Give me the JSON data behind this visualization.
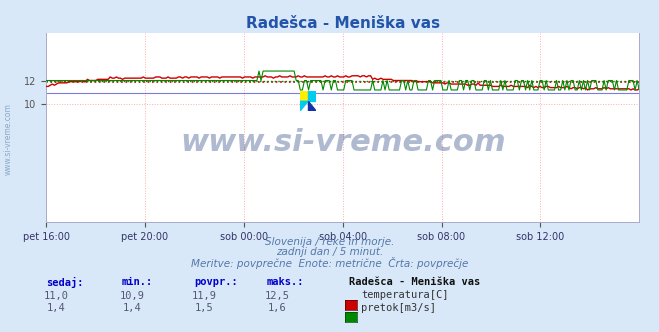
{
  "title": "Radešca - Meniška vas",
  "title_color": "#2255aa",
  "bg_color": "#d8e8f8",
  "plot_bg_color": "#ffffff",
  "grid_color": "#ffaaaa",
  "xlabel_ticks": [
    "pet 16:00",
    "pet 20:00",
    "sob 00:00",
    "sob 04:00",
    "sob 08:00",
    "sob 12:00"
  ],
  "ylim": [
    0,
    16
  ],
  "yticks": [
    10,
    12
  ],
  "temp_color": "#cc0000",
  "flow_color": "#008800",
  "blue_line_color": "#4444cc",
  "avg_temp": 11.9,
  "avg_flow": 1.5,
  "watermark_text": "www.si-vreme.com",
  "watermark_color": "#1a3a7a",
  "watermark_alpha": 0.35,
  "sub_line1": "Slovenija / reke in morje.",
  "sub_line2": "zadnji dan / 5 minut.",
  "sub_line3": "Meritve: povprečne  Enote: metrične  Črta: povprečje",
  "sub_color": "#5577aa",
  "table_label_color": "#0000cc",
  "table_value_color": "#555577",
  "table_headers": [
    "sedaj:",
    "min.:",
    "povpr.:",
    "maks.:"
  ],
  "table_station": "Radešca - Meniška vas",
  "temp_row": [
    "11,0",
    "10,9",
    "11,9",
    "12,5"
  ],
  "flow_row": [
    "1,4",
    "1,4",
    "1,5",
    "1,6"
  ],
  "temp_label": "temperatura[C]",
  "flow_label": "pretok[m3/s]",
  "n_points": 288
}
